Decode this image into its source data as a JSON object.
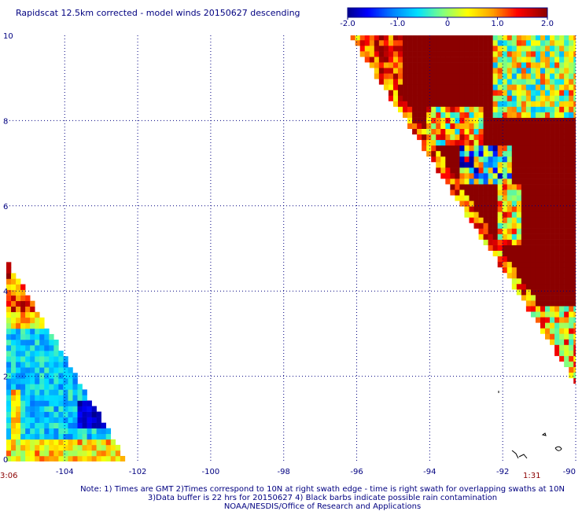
{
  "chart_data": {
    "type": "heatmap",
    "title": "Rapidscat 12.5km corrected - model winds 20150627 descending",
    "xlabel": "",
    "ylabel": "",
    "xlim": [
      -105.6,
      -90
    ],
    "ylim": [
      0,
      10
    ],
    "x_ticks": [
      "-104",
      "-102",
      "-100",
      "-98",
      "-96",
      "-94",
      "-92",
      "-90"
    ],
    "x_tick_values": [
      -104,
      -102,
      -100,
      -98,
      -96,
      -94,
      -92,
      -90
    ],
    "y_ticks": [
      "0",
      "2",
      "4",
      "6",
      "8",
      "10"
    ],
    "y_tick_values": [
      0,
      2,
      4,
      6,
      8,
      10
    ],
    "grid": true,
    "colorbar": {
      "range": [
        -2.0,
        2.0
      ],
      "tick_labels": [
        "-2.0",
        "-1.0",
        "0",
        "1.0",
        "2.0"
      ],
      "tick_values": [
        -2.0,
        -1.0,
        0,
        1.0,
        2.0
      ],
      "colors": [
        "#00008b",
        "#0000ff",
        "#0080ff",
        "#00ffff",
        "#80ff80",
        "#ffff00",
        "#ff8000",
        "#ff0000",
        "#8b0000"
      ]
    },
    "swaths": [
      {
        "name": "",
        "time_label": "3:06",
        "region": "lower-left triangle, lon -105.6 to -102.4, lat 0 to 4.6",
        "dominant_values": "mostly -0.3 to -1.0, with -2.0 area near lon -103.5 to -102.8, lat 0.8 to 1.3; positive 0.5 to 2.0 at lat above 3.6"
      },
      {
        "name": "",
        "time_label": "1:31",
        "region": "upper-right band, lon -96.3 to -90, lat 1.7 to 10",
        "dominant_values": "mostly 2.0 (dark red) in the interior, -1.0 to 1.0 near lon -91.5 to -90 for lat 8 to 10, -2.0 patches near lon -93 to -92, lat 6.5 to 7"
      }
    ],
    "annotations": [
      "Note: 1) Times are GMT 2)Times correspond to 10N at right swath edge - time is right swath for overlapping swaths at 10N",
      "3)Data buffer is 22 hrs for 20150627 4) Black barbs indicate possible rain contamination",
      "NOAA/NESDIS/Office of Research and Applications"
    ]
  }
}
